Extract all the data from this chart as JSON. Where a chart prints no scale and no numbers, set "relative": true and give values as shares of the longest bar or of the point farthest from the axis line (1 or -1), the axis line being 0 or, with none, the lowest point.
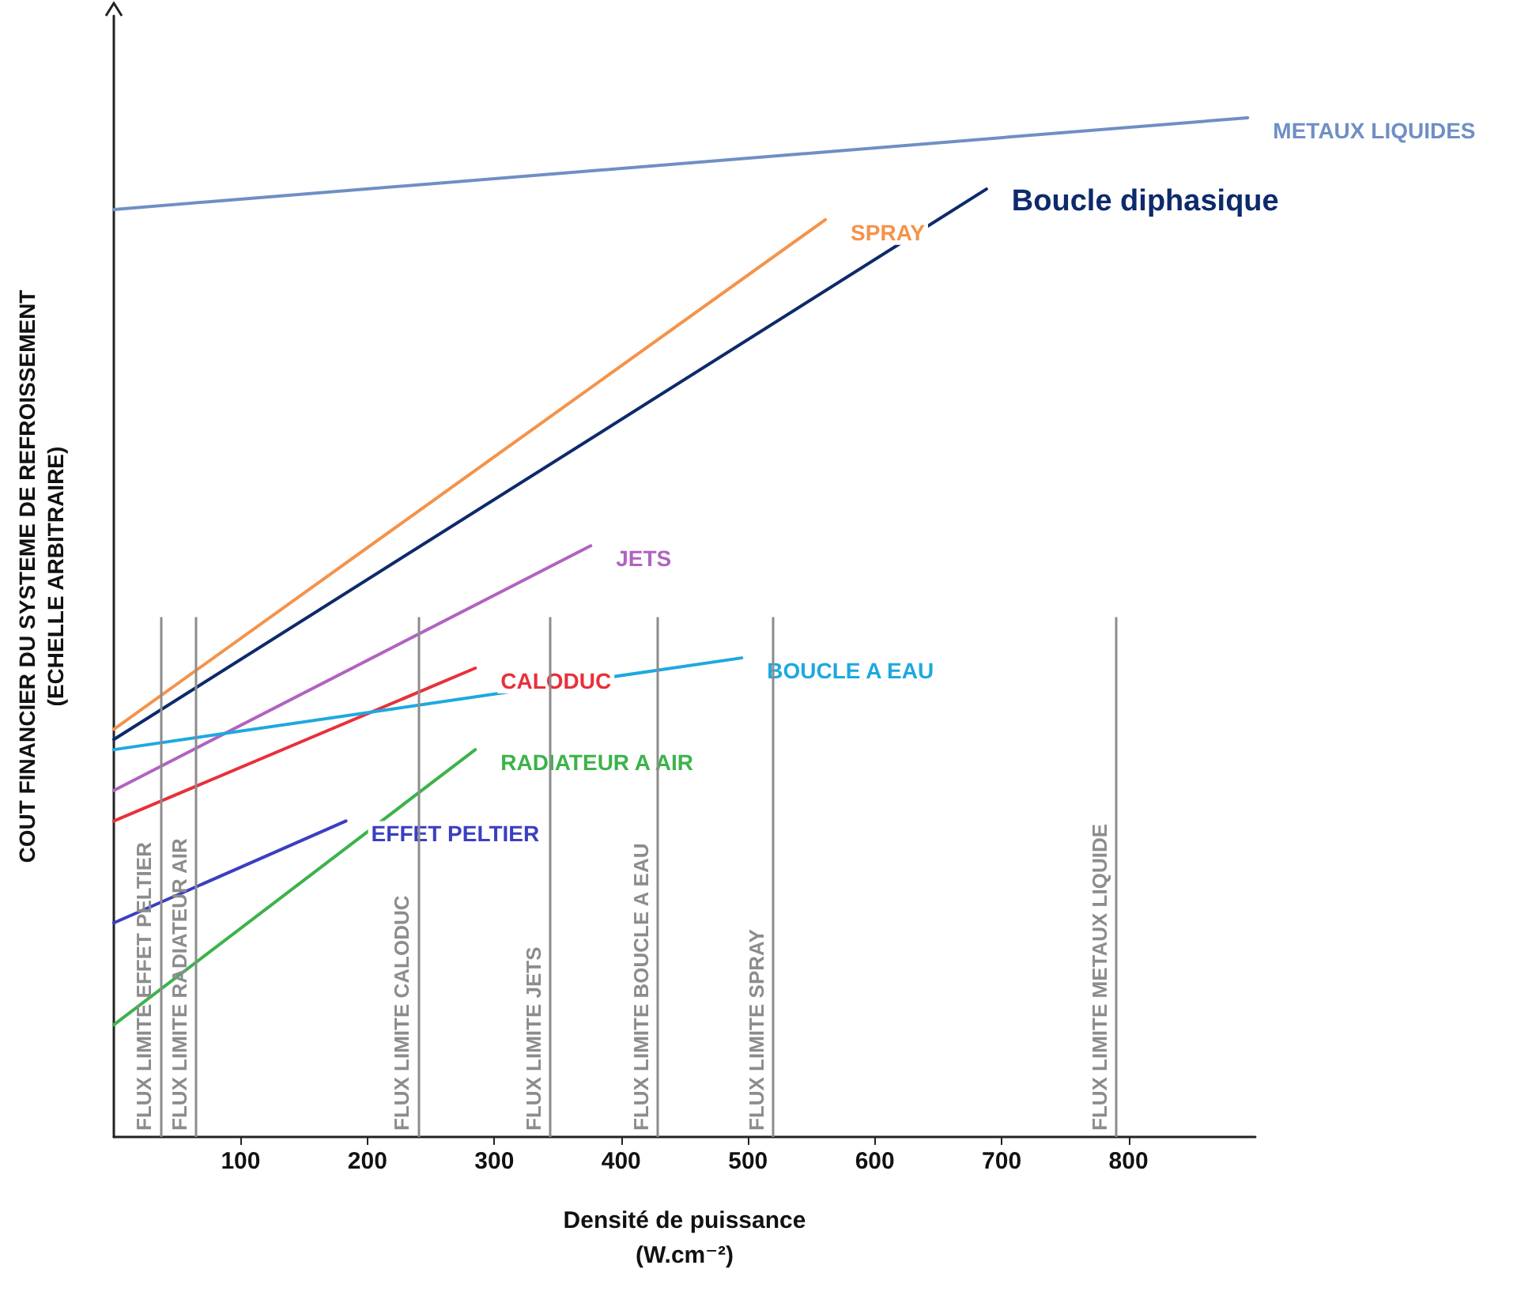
{
  "chart_data": {
    "type": "line",
    "relative": true,
    "xlabel": "Densité de puissance\n(W.cm⁻²)",
    "ylabel": "COUT FINANCIER DU SYSTEME DE REFROISSEMENT\n(ECHELLE ARBITRAIRE)",
    "xlim": [
      0,
      900
    ],
    "xticks": [
      100,
      200,
      300,
      400,
      500,
      600,
      700,
      800
    ],
    "grid": false,
    "legend": false,
    "marker": "none",
    "line_style": "solid",
    "series": [
      {
        "name": "METAUX LIQUIDES",
        "color": "#6f8fc4",
        "x": [
          0,
          894
        ],
        "values": [
          0.91,
          1
        ]
      },
      {
        "name": "SPRAY",
        "color": "#f4934a",
        "x": [
          0,
          561
        ],
        "values": [
          0.4,
          0.9
        ]
      },
      {
        "name": "Boucle diphasique",
        "color": "#0d2a6b",
        "x": [
          0,
          688
        ],
        "values": [
          0.39,
          0.93
        ]
      },
      {
        "name": "JETS",
        "color": "#b063c0",
        "x": [
          0,
          376
        ],
        "values": [
          0.34,
          0.58
        ]
      },
      {
        "name": "CALODUC",
        "color": "#e8303a",
        "x": [
          0,
          285
        ],
        "values": [
          0.31,
          0.46
        ]
      },
      {
        "name": "BOUCLE A EAU",
        "color": "#1ea8e0",
        "x": [
          0,
          495
        ],
        "values": [
          0.38,
          0.47
        ]
      },
      {
        "name": "RADIATEUR A AIR",
        "color": "#3cb34a",
        "x": [
          0,
          285
        ],
        "values": [
          0.11,
          0.38
        ]
      },
      {
        "name": "EFFET PELTIER",
        "color": "#3a3fc0",
        "x": [
          0,
          183
        ],
        "values": [
          0.21,
          0.31
        ]
      }
    ],
    "ref_lines": [
      {
        "axis": "x",
        "value": 37,
        "label": "FLUX LIMITE EFFET PELTIER",
        "color": "#8c8c8c"
      },
      {
        "axis": "x",
        "value": 65,
        "label": "FLUX LIMITE RADIATEUR AIR",
        "color": "#8c8c8c"
      },
      {
        "axis": "x",
        "value": 240,
        "label": "FLUX LIMITE CALODUC",
        "color": "#8c8c8c"
      },
      {
        "axis": "x",
        "value": 344,
        "label": "FLUX LIMITE JETS",
        "color": "#8c8c8c"
      },
      {
        "axis": "x",
        "value": 429,
        "label": "FLUX LIMITE BOUCLE A EAU",
        "color": "#8c8c8c"
      },
      {
        "axis": "x",
        "value": 520,
        "label": "FLUX LIMITE SPRAY",
        "color": "#8c8c8c"
      },
      {
        "axis": "x",
        "value": 790,
        "label": "FLUX LIMITE METAUX LIQUIDE",
        "color": "#8c8c8c"
      }
    ]
  }
}
